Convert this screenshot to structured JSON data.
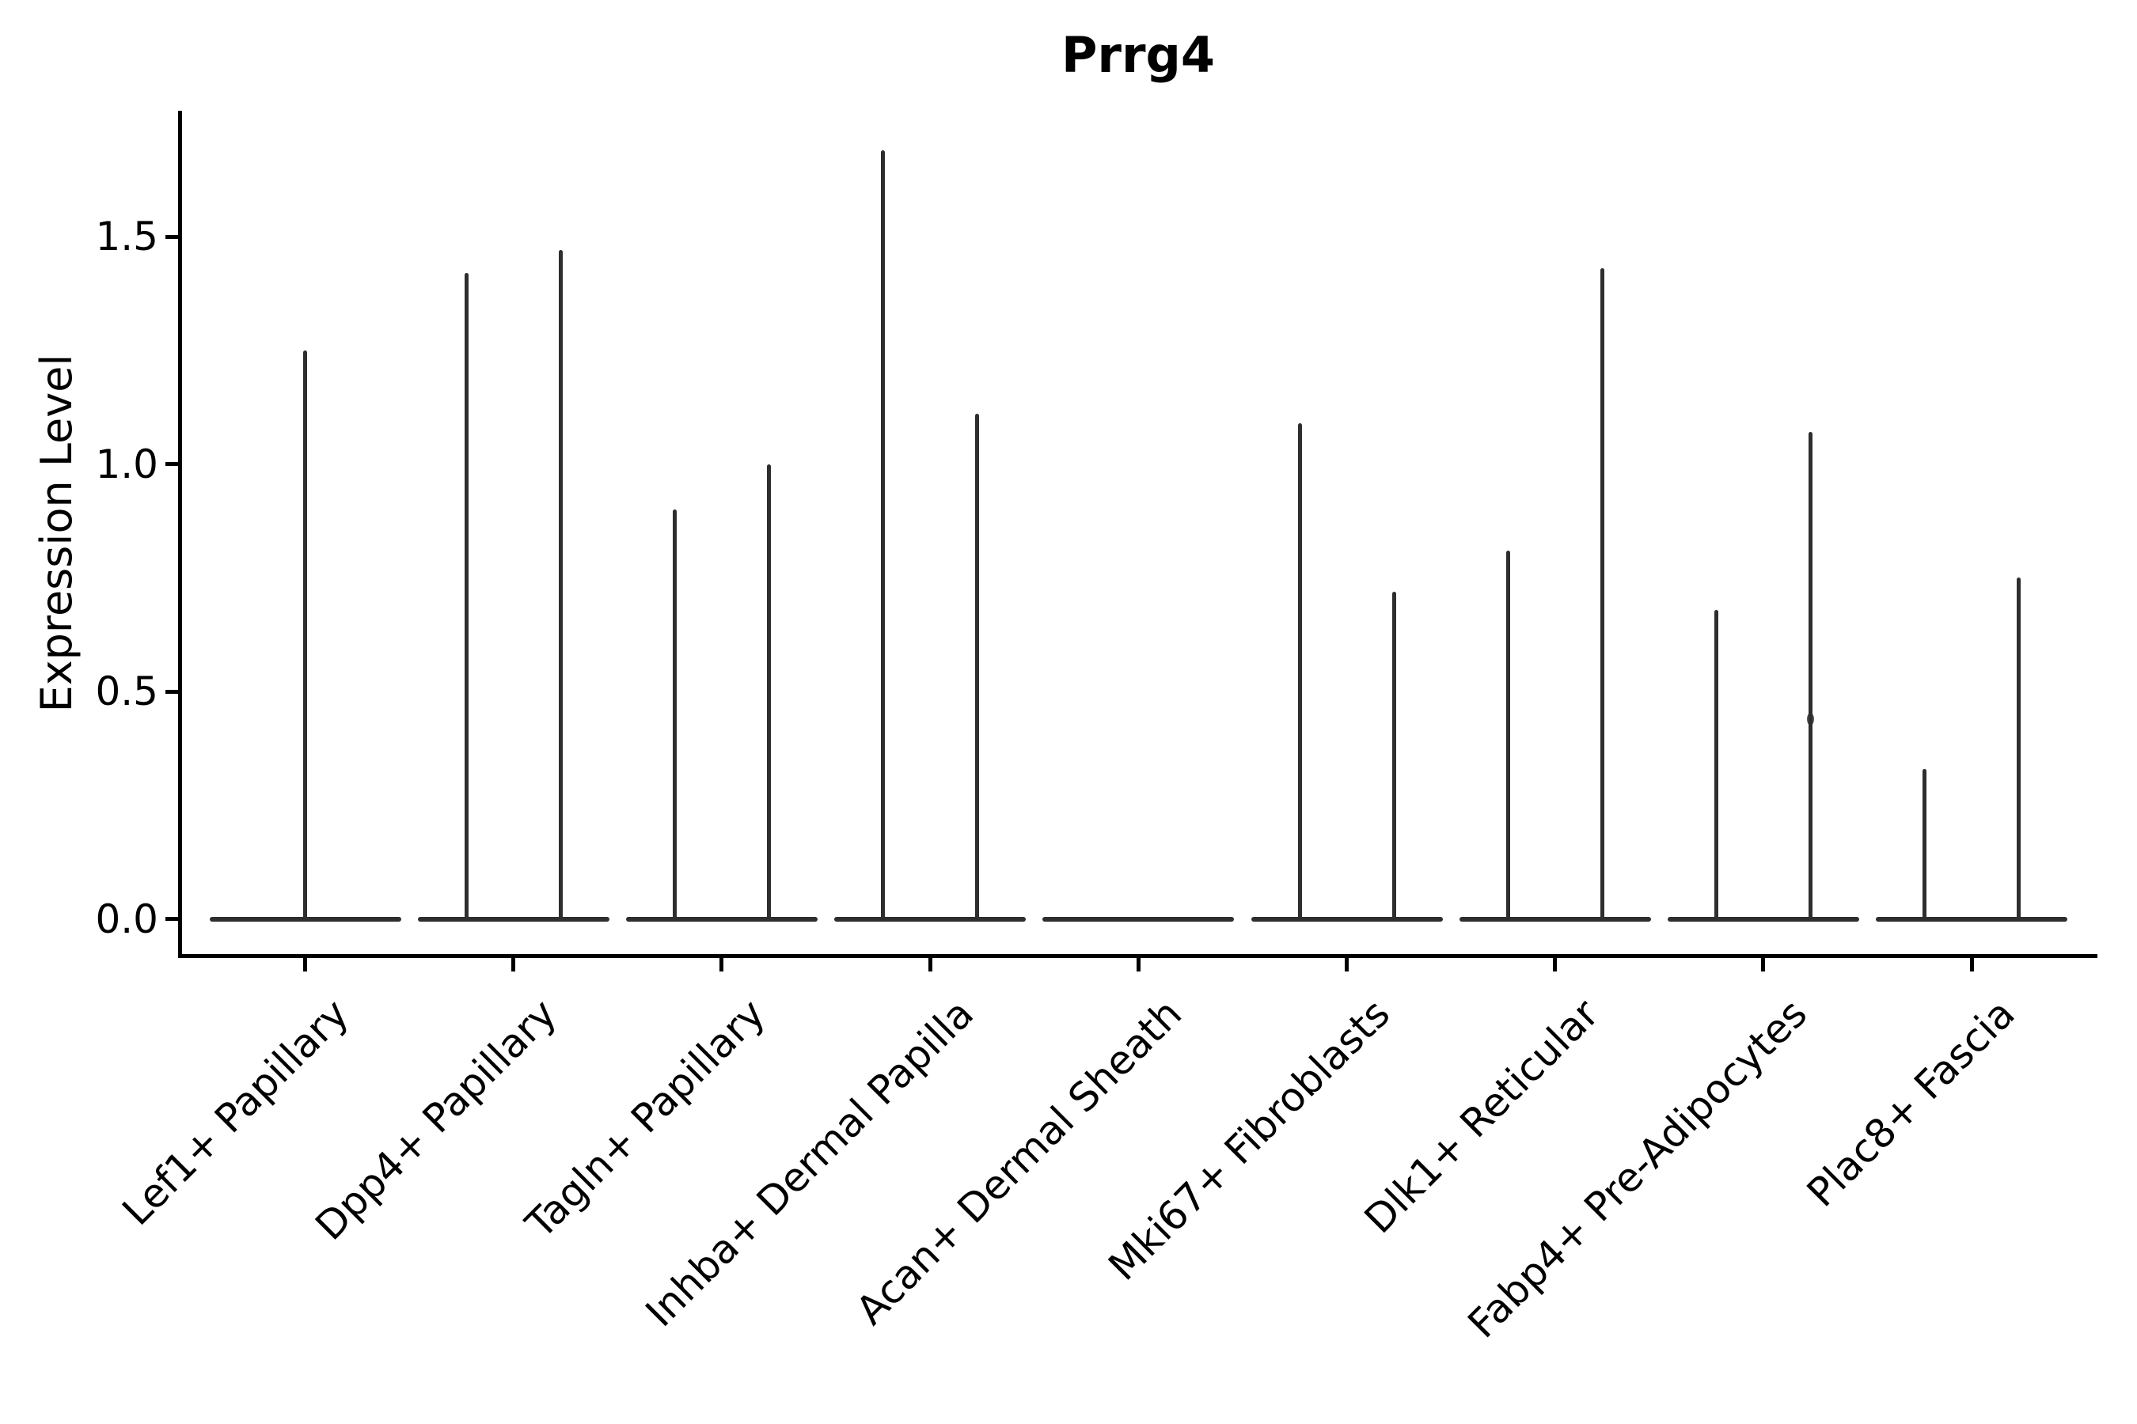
{
  "title": "Prrg4",
  "colors": {
    "ink": "#000000",
    "violin": "#2e2e2e",
    "background": "#ffffff"
  },
  "chart_data": {
    "type": "violin",
    "title": "Prrg4",
    "xlabel": "",
    "ylabel": "Expression Level",
    "ylim": [
      -0.08,
      1.78
    ],
    "grid": false,
    "legend": false,
    "yticks": [
      {
        "value": 0.0,
        "label": "0.0"
      },
      {
        "value": 0.5,
        "label": "0.5"
      },
      {
        "value": 1.0,
        "label": "1.0"
      },
      {
        "value": 1.5,
        "label": "1.5"
      }
    ],
    "categories": [
      "Lef1+ Papillary",
      "Dpp4+ Papillary",
      "Tagln+ Papillary",
      "Inhba+ Dermal Papilla",
      "Acan+ Dermal Sheath",
      "Mki67+ Fibroblasts",
      "Dlk1+ Reticular",
      "Fabp4+ Pre-Adipocytes",
      "Plac8+ Fascia"
    ],
    "description": "Needle-thin violins concentrated at expression 0 with narrow spikes up to the max expression per group; two split violins per category except a single centered violin for Lef1+ Papillary and a flat all-zero violin for Acan+ Dermal Sheath.",
    "violins": [
      {
        "category": "Lef1+ Papillary",
        "spikes": [
          {
            "side": "center",
            "max": 1.25
          }
        ]
      },
      {
        "category": "Dpp4+ Papillary",
        "spikes": [
          {
            "side": "left",
            "max": 1.42
          },
          {
            "side": "right",
            "max": 1.47
          }
        ]
      },
      {
        "category": "Tagln+ Papillary",
        "spikes": [
          {
            "side": "left",
            "max": 0.9
          },
          {
            "side": "right",
            "max": 1.0
          }
        ]
      },
      {
        "category": "Inhba+ Dermal Papilla",
        "spikes": [
          {
            "side": "left",
            "max": 1.69
          },
          {
            "side": "right",
            "max": 1.11
          }
        ]
      },
      {
        "category": "Acan+ Dermal Sheath",
        "spikes": []
      },
      {
        "category": "Mki67+ Fibroblasts",
        "spikes": [
          {
            "side": "left",
            "max": 1.09
          },
          {
            "side": "right",
            "max": 0.72
          }
        ]
      },
      {
        "category": "Dlk1+ Reticular",
        "spikes": [
          {
            "side": "left",
            "max": 0.81
          },
          {
            "side": "right",
            "max": 1.43
          }
        ]
      },
      {
        "category": "Fabp4+ Pre-Adipocytes",
        "spikes": [
          {
            "side": "left",
            "max": 0.68
          },
          {
            "side": "right",
            "max": 1.07,
            "bump": 0.44
          }
        ]
      },
      {
        "category": "Plac8+ Fascia",
        "spikes": [
          {
            "side": "left",
            "max": 0.33
          },
          {
            "side": "right",
            "max": 0.75
          }
        ]
      }
    ]
  }
}
